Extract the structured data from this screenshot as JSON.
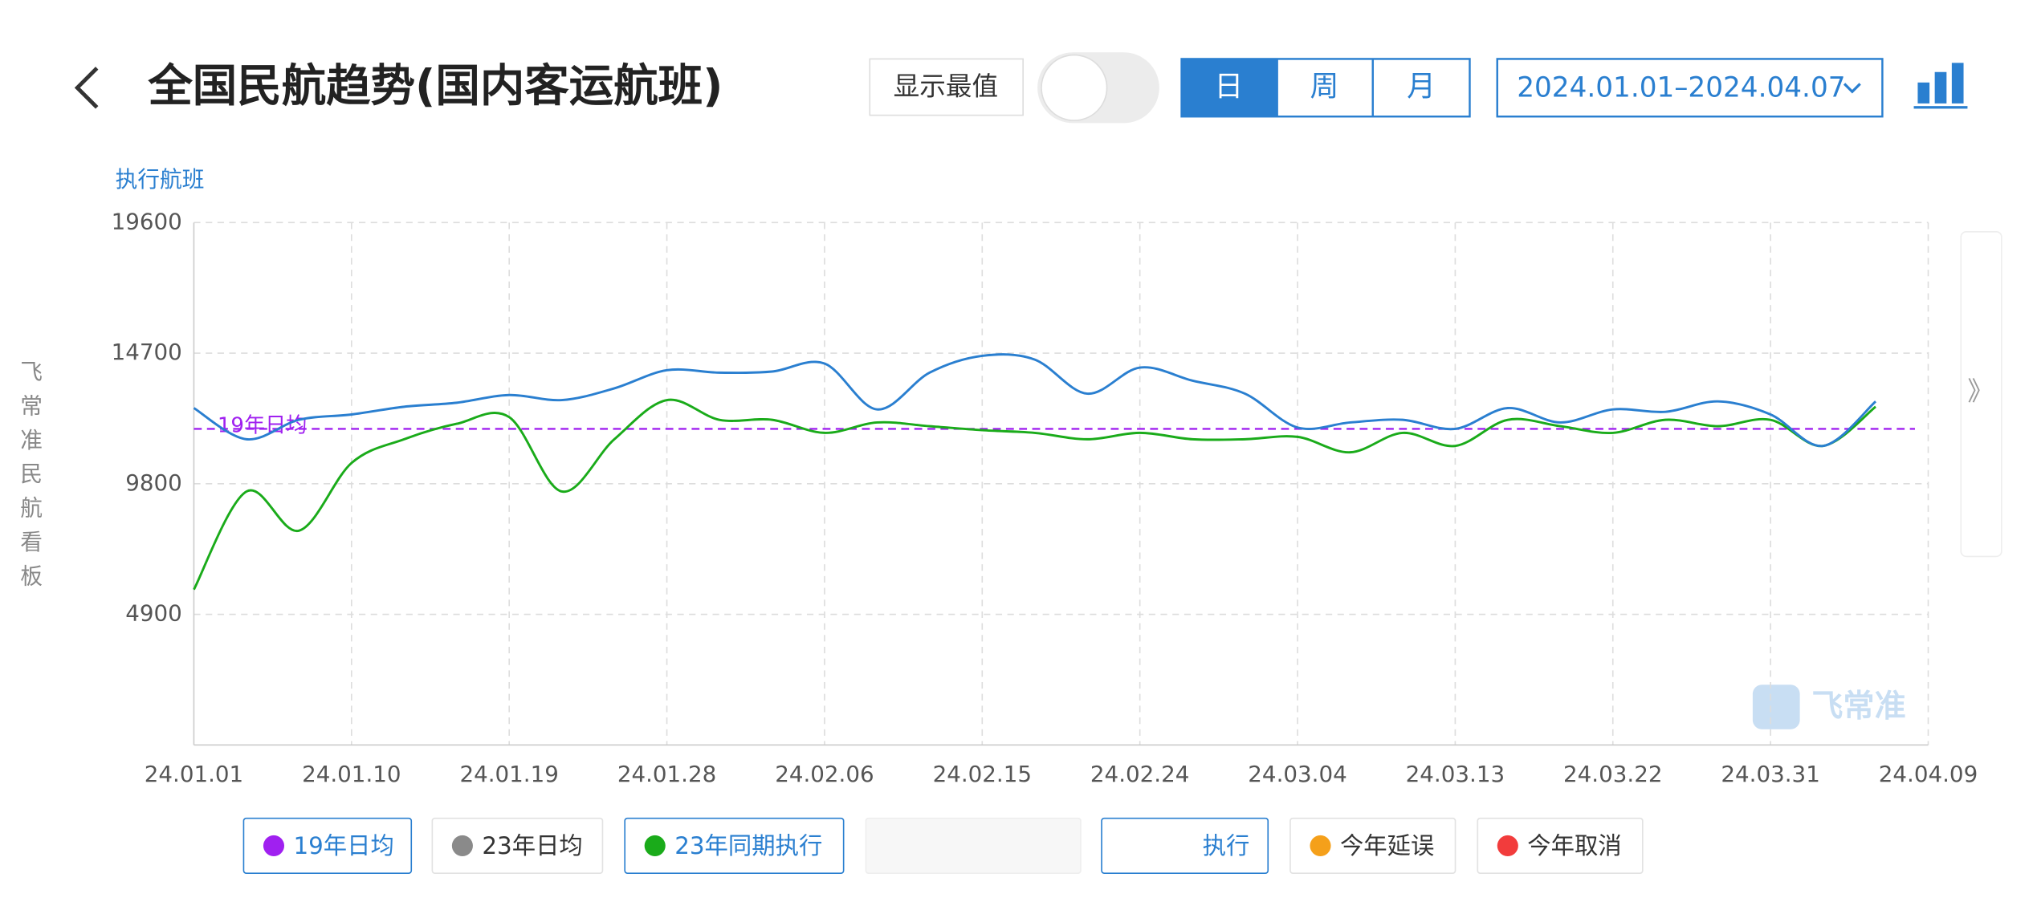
{
  "header": {
    "title": "全国民航趋势(国内客运航班)",
    "toggle_label": "显示最值",
    "periods": [
      "日",
      "周",
      "月"
    ],
    "date_range": "2024.01.01–2024.04.07"
  },
  "side_text": "飞常准民航看板",
  "watermark": "飞常准",
  "chart_data": {
    "type": "line",
    "y_label": "执行航班",
    "x": [
      "24.01.01",
      "24.01.04",
      "24.01.07",
      "24.01.10",
      "24.01.13",
      "24.01.16",
      "24.01.19",
      "24.01.22",
      "24.01.25",
      "24.01.28",
      "24.01.31",
      "24.02.03",
      "24.02.06",
      "24.02.09",
      "24.02.12",
      "24.02.15",
      "24.02.18",
      "24.02.21",
      "24.02.24",
      "24.02.27",
      "24.03.01",
      "24.03.04",
      "24.03.07",
      "24.03.10",
      "24.03.13",
      "24.03.16",
      "24.03.19",
      "24.03.22",
      "24.03.25",
      "24.03.28",
      "24.03.31",
      "24.04.03",
      "24.04.06"
    ],
    "series": [
      {
        "name": "执行",
        "color": "#2a7fd0",
        "values": [
          12640,
          11470,
          12200,
          12400,
          12690,
          12840,
          13130,
          12940,
          13380,
          14060,
          13970,
          14010,
          14310,
          12590,
          13970,
          14600,
          14460,
          13180,
          14160,
          13670,
          13180,
          11910,
          12100,
          12200,
          11860,
          12640,
          12100,
          12590,
          12500,
          12890,
          12400,
          11220,
          12890
        ]
      },
      {
        "name": "23年同期执行",
        "color": "#1aab1a",
        "values": [
          5830,
          9510,
          8040,
          10580,
          11470,
          12050,
          12300,
          9510,
          11470,
          12940,
          12200,
          12200,
          11710,
          12100,
          11960,
          11810,
          11710,
          11470,
          11710,
          11470,
          11470,
          11560,
          10980,
          11710,
          11220,
          12200,
          11960,
          11710,
          12200,
          11960,
          12200,
          11220,
          12690
        ]
      }
    ],
    "reference_lines": [
      {
        "name": "19年日均",
        "value": 11860,
        "color": "#a020f0"
      }
    ],
    "inactive_legend": [
      {
        "name": "23年日均",
        "color": "#8a8a8a"
      },
      {
        "name": "今年延误",
        "color": "#f5a01a"
      },
      {
        "name": "今年取消",
        "color": "#f23c3c"
      }
    ],
    "xlim": [
      "24.01.01",
      "24.04.09"
    ],
    "xticks": [
      "24.01.01",
      "24.01.10",
      "24.01.19",
      "24.01.28",
      "24.02.06",
      "24.02.15",
      "24.02.24",
      "24.03.04",
      "24.03.13",
      "24.03.22",
      "24.03.31",
      "24.04.09"
    ],
    "ylim": [
      0,
      19600
    ],
    "yticks": [
      4900,
      9800,
      14700,
      19600
    ],
    "grid": true
  }
}
